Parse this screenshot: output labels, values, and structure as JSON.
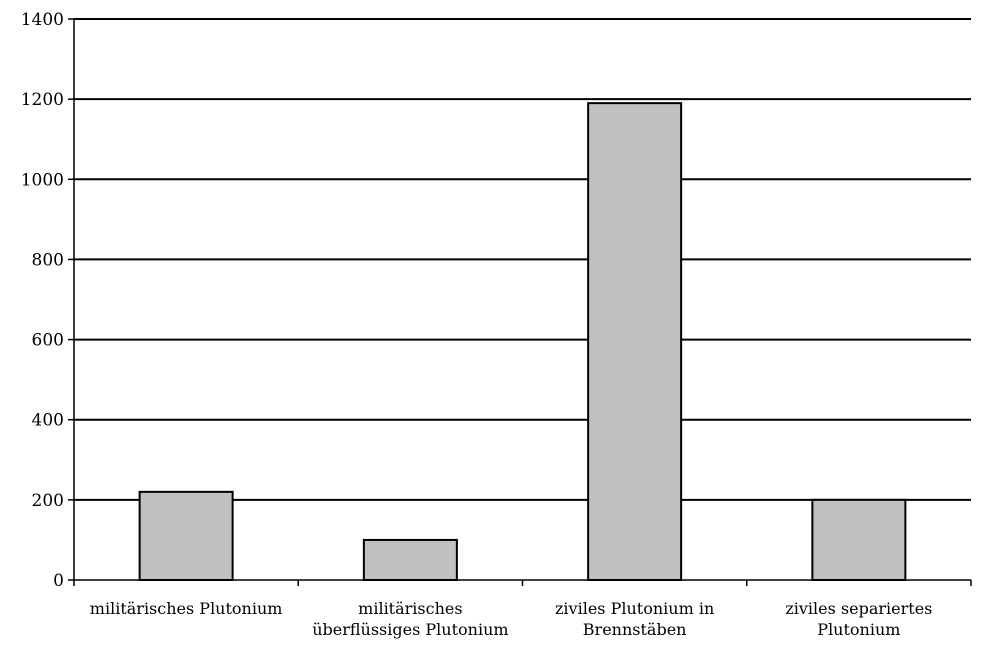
{
  "chart_data": {
    "type": "bar",
    "title": "",
    "xlabel": "",
    "ylabel": "",
    "ylim": [
      0,
      1400
    ],
    "yticks": [
      0,
      200,
      400,
      600,
      800,
      1000,
      1200,
      1400
    ],
    "yticks_labels": [
      "0",
      "200",
      "400",
      "600",
      "800",
      "1000",
      "1200",
      "1400"
    ],
    "grid": true,
    "legend": "none",
    "categories": [
      [
        "militärisches Plutonium"
      ],
      [
        "militärisches",
        "überflüssiges Plutonium"
      ],
      [
        "ziviles Plutonium in",
        "Brennstäben"
      ],
      [
        "ziviles separiertes",
        "Plutonium"
      ]
    ],
    "values": [
      220,
      100,
      1190,
      200
    ],
    "colors": {
      "bar_fill": "#c0c0c0",
      "bar_stroke": "#000000",
      "grid": "#000000"
    }
  }
}
